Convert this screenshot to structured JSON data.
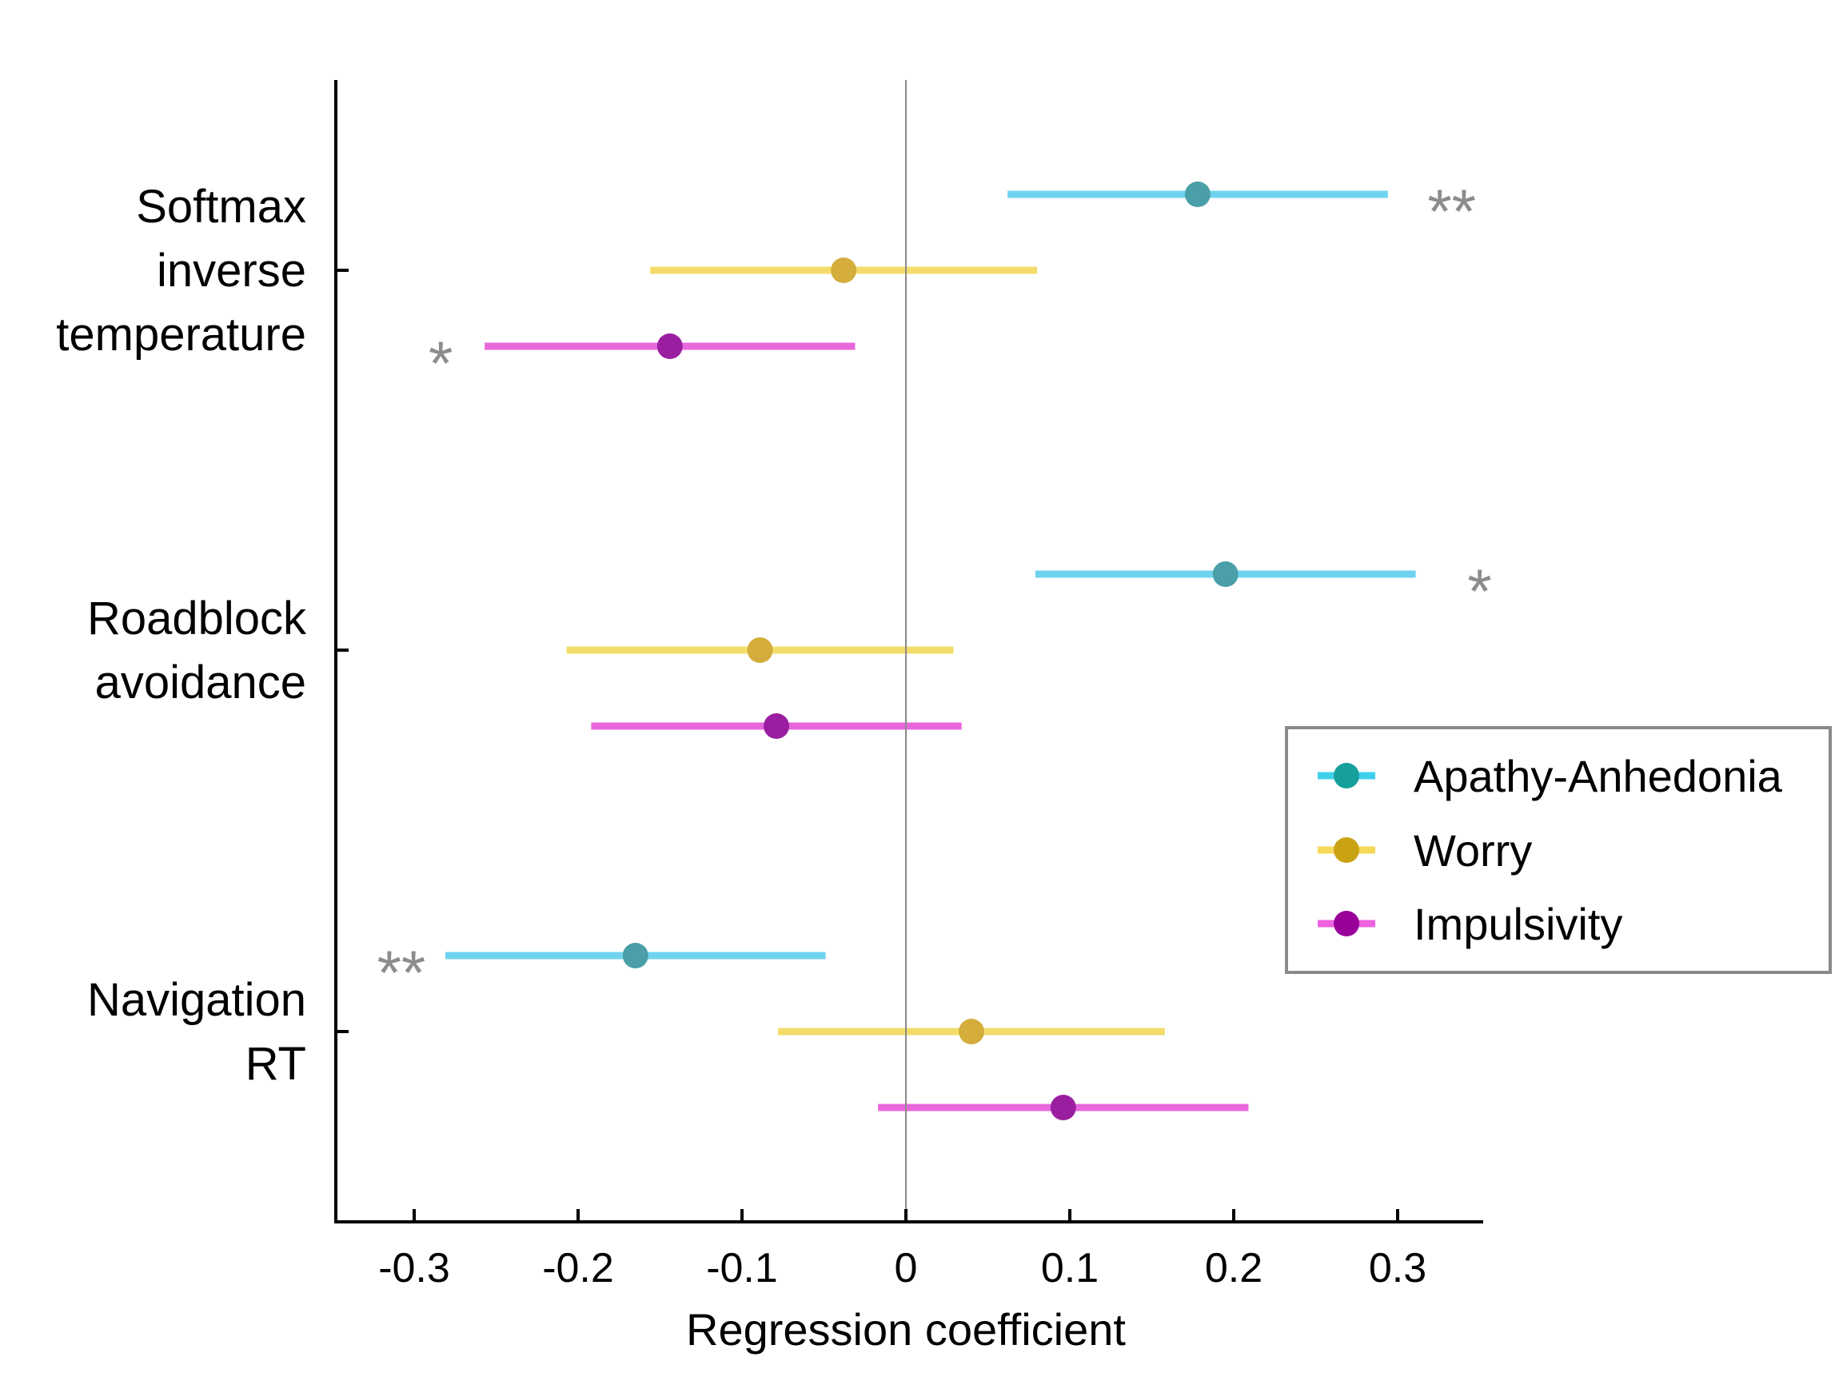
{
  "chart_data": {
    "type": "scatter",
    "orientation": "horizontal-errorbar",
    "xlabel": "Regression coefficient",
    "xlim": [
      -0.35,
      0.35
    ],
    "xticks": [
      -0.3,
      -0.2,
      -0.1,
      0,
      0.1,
      0.2,
      0.3
    ],
    "xtick_labels": [
      "-0.3",
      "-0.2",
      "-0.1",
      "0",
      "0.1",
      "0.2",
      "0.3"
    ],
    "zero_line": true,
    "grid": false,
    "legend_position": "right",
    "categories": [
      {
        "lines": [
          "Softmax",
          "inverse",
          "temperature"
        ]
      },
      {
        "lines": [
          "Roadblock",
          "avoidance"
        ]
      },
      {
        "lines": [
          "Navigation",
          "RT"
        ]
      }
    ],
    "series": [
      {
        "name": "Apathy-Anhedonia",
        "line_color": "#6fd3f0",
        "marker_color": "#4a9fa8",
        "legend_marker_color": "#16a09c",
        "legend_line_color": "#3fd0ec",
        "values": [
          0.178,
          0.195,
          -0.165
        ],
        "ci_low": [
          0.062,
          0.079,
          -0.281
        ],
        "ci_high": [
          0.294,
          0.311,
          -0.049
        ],
        "significance": [
          "**",
          "*",
          "**"
        ]
      },
      {
        "name": "Worry",
        "line_color": "#f3dc6a",
        "marker_color": "#d4ad3c",
        "legend_marker_color": "#caa314",
        "legend_line_color": "#f6d95a",
        "values": [
          -0.038,
          -0.089,
          0.04
        ],
        "ci_low": [
          -0.156,
          -0.207,
          -0.078
        ],
        "ci_high": [
          0.08,
          0.029,
          0.158
        ],
        "significance": [
          "",
          "",
          ""
        ]
      },
      {
        "name": "Impulsivity",
        "line_color": "#e868dc",
        "marker_color": "#9a1fa0",
        "legend_marker_color": "#990099",
        "legend_line_color": "#ec62df",
        "values": [
          -0.144,
          -0.079,
          0.096
        ],
        "ci_low": [
          -0.257,
          -0.192,
          -0.017
        ],
        "ci_high": [
          -0.031,
          0.034,
          0.209
        ],
        "significance": [
          "*",
          "",
          ""
        ]
      }
    ]
  }
}
